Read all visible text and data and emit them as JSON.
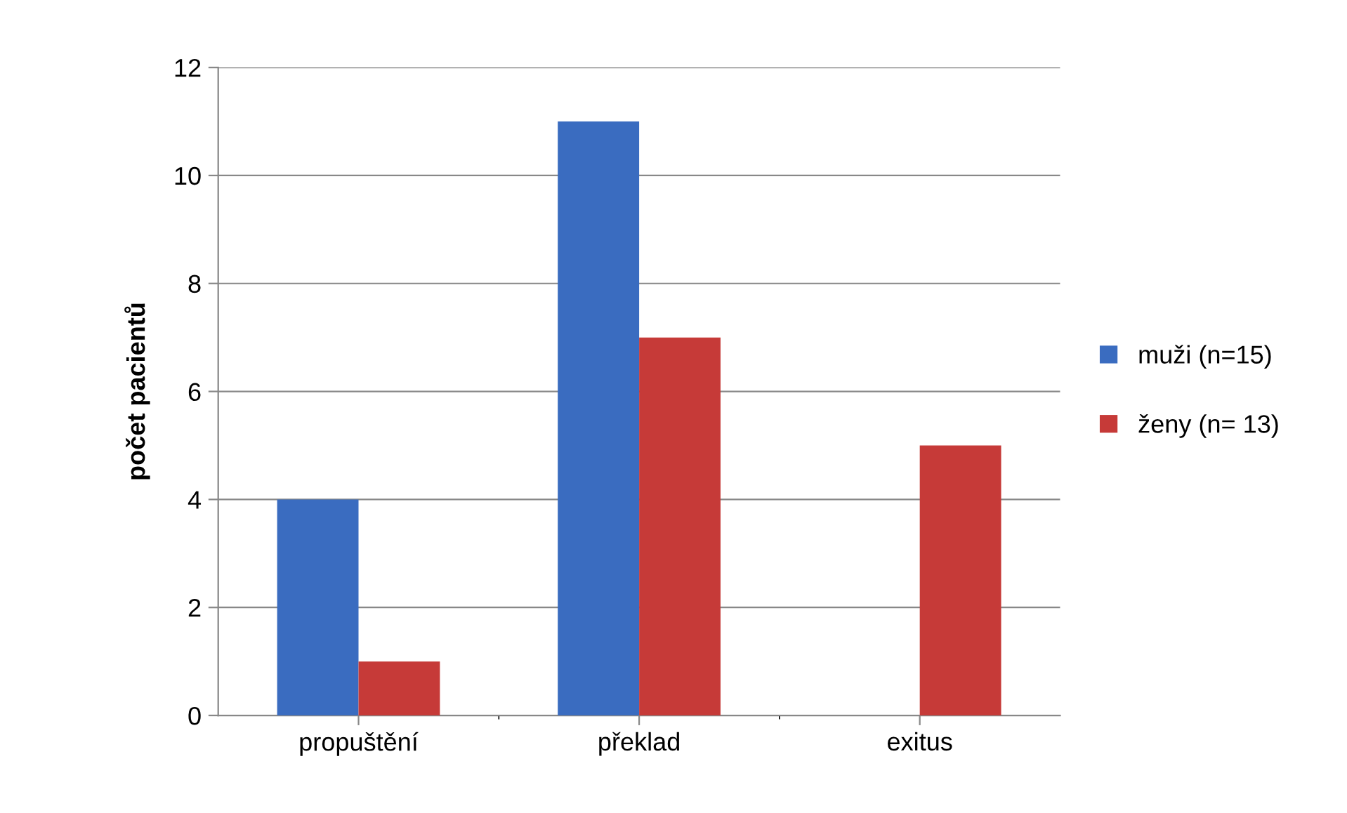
{
  "chart_data": {
    "type": "bar",
    "ylabel": "počet pacientů",
    "categories": [
      "propuštění",
      "překlad",
      "exitus"
    ],
    "series": [
      {
        "name": "muži (n=15)",
        "color": "#3a6cc0",
        "values": [
          4,
          11,
          0
        ]
      },
      {
        "name": "ženy (n= 13)",
        "color": "#c63a38",
        "values": [
          1,
          7,
          5
        ]
      }
    ],
    "ylim": [
      0,
      12
    ],
    "yticks": [
      0,
      2,
      4,
      6,
      8,
      10,
      12
    ],
    "grid": "y",
    "legend": "right"
  }
}
